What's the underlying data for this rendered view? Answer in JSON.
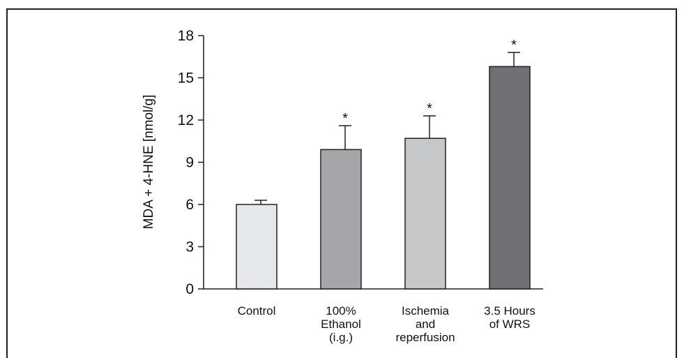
{
  "chart_data": {
    "type": "bar",
    "ylabel": "MDA + 4-HNE [nmol/g]",
    "ylim": [
      0,
      18
    ],
    "yticks": [
      0,
      3,
      6,
      9,
      12,
      15,
      18
    ],
    "grid": false,
    "categories": [
      [
        "Control"
      ],
      [
        "100%",
        "Ethanol",
        "(i.g.)"
      ],
      [
        "Ischemia",
        "and",
        "reperfusion"
      ],
      [
        "3.5 Hours",
        "of WRS"
      ]
    ],
    "values": [
      6.0,
      9.9,
      10.7,
      15.8
    ],
    "error": [
      0.3,
      1.7,
      1.6,
      1.0
    ],
    "significance": [
      "",
      "*",
      "*",
      "*"
    ],
    "colors": [
      "#e6e7e8",
      "#a5a6a9",
      "#c6c7c9",
      "#6f7074"
    ]
  }
}
